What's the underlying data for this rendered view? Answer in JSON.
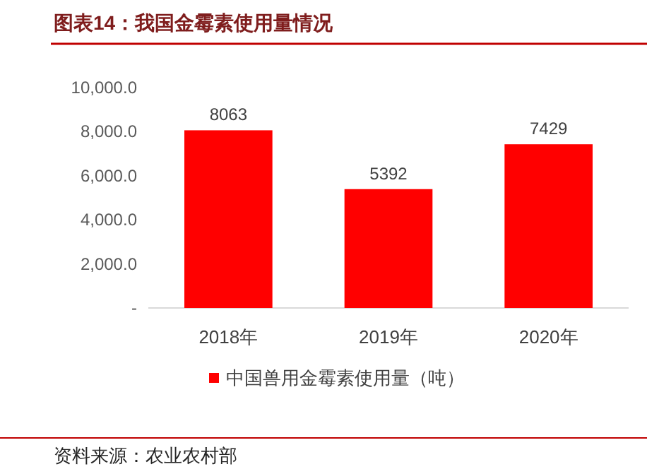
{
  "chart_data": {
    "type": "bar",
    "title": "图表14：我国金霉素使用量情况",
    "categories": [
      "2018年",
      "2019年",
      "2020年"
    ],
    "series": [
      {
        "name": "中国兽用金霉素使用量（吨）",
        "color": "#ff0000",
        "values": [
          8063,
          5392,
          7429
        ]
      }
    ],
    "ylim": [
      0,
      10000
    ],
    "yticks": [
      {
        "value": 0,
        "label": "-"
      },
      {
        "value": 2000,
        "label": "2,000.0"
      },
      {
        "value": 4000,
        "label": "4,000.0"
      },
      {
        "value": 6000,
        "label": "6,000.0"
      },
      {
        "value": 8000,
        "label": "8,000.0"
      },
      {
        "value": 10000,
        "label": "10,000.0"
      }
    ],
    "data_labels": true,
    "grid": false,
    "legend": "bottom",
    "annotations": [
      "资料来源：农业农村部"
    ]
  }
}
